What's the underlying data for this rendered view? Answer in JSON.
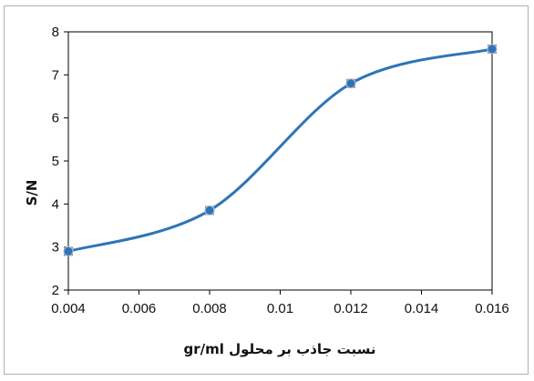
{
  "chart_data": {
    "type": "line",
    "title": "",
    "xlabel": "نسبت جاذب بر محلول gr/ml",
    "ylabel": "S/N",
    "xlim": [
      0.004,
      0.016
    ],
    "ylim": [
      2,
      8
    ],
    "x_ticks": [
      "0.004",
      "0.006",
      "0.008",
      "0.01",
      "0.012",
      "0.014",
      "0.016"
    ],
    "y_ticks": [
      "2",
      "3",
      "4",
      "5",
      "6",
      "7",
      "8"
    ],
    "grid": false,
    "legend": "none",
    "series": [
      {
        "color": "#2e75b6",
        "marker_color": "#e06666",
        "x": [
          0.004,
          0.008,
          0.012,
          0.016
        ],
        "y": [
          2.9,
          3.85,
          6.8,
          7.6
        ]
      }
    ]
  }
}
